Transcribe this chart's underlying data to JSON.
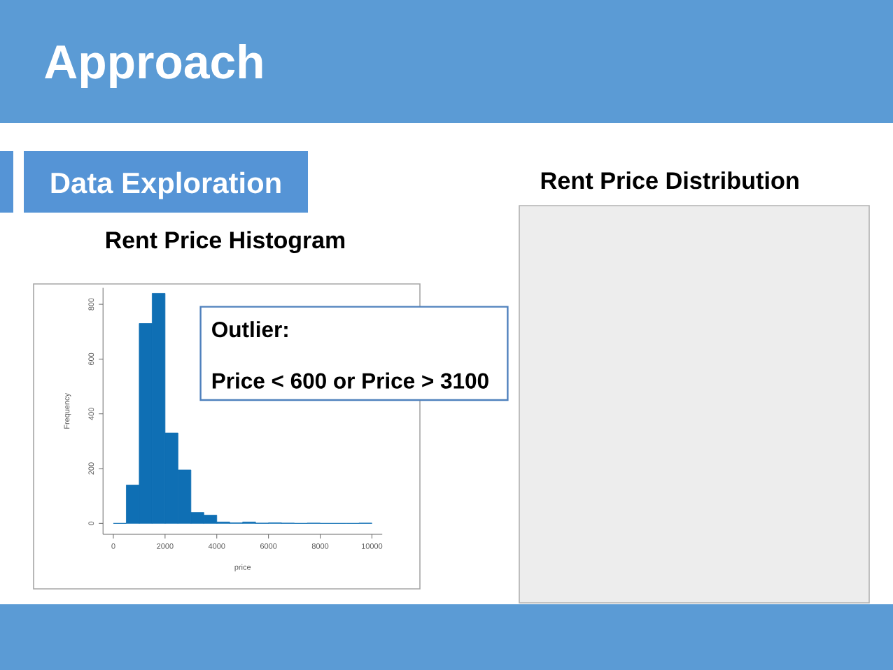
{
  "chart_data": {
    "type": "histogram",
    "title": "Rent Price Histogram",
    "xlabel": "price",
    "ylabel": "Frequency",
    "annotations": [
      "Approach",
      "Data Exploration",
      "Outlier:",
      "Price < 600 or Price > 3100",
      "Rent Price Distribution"
    ],
    "bins": [
      0,
      500,
      1000,
      1500,
      2000,
      2500,
      3000,
      3500,
      4000,
      4500,
      5000,
      5500,
      6000,
      6500,
      7000,
      7500,
      8000,
      8500,
      9000,
      9500,
      10000
    ],
    "values": [
      0,
      140,
      730,
      840,
      330,
      195,
      40,
      30,
      5,
      2,
      5,
      1,
      2,
      1,
      0,
      1,
      0,
      0,
      0,
      1
    ],
    "color": "#0f6fb4",
    "xlim": [
      -400,
      10400
    ],
    "ylim": [
      -40,
      860
    ],
    "xticks": [
      0,
      2000,
      4000,
      6000,
      8000,
      10000
    ],
    "yticks": [
      0,
      200,
      400,
      600,
      800
    ]
  }
}
